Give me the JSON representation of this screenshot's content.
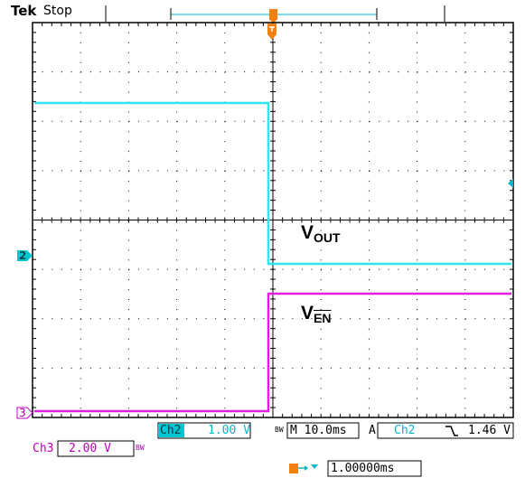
{
  "header": {
    "brand": "Tek",
    "status": "Stop"
  },
  "markers": {
    "trigger": "T",
    "ch2": "2",
    "ch3": "3"
  },
  "traces": {
    "vout_label_main": "V",
    "vout_label_sub": "OUT",
    "ven_label_main": "V",
    "ven_label_sub": "EN"
  },
  "readout": {
    "ch2_name": "Ch2",
    "ch2_scale": "1.00 V",
    "bw_symbol": "BW",
    "timebase": "M 10.0ms",
    "acq_mode": "A",
    "trig_source": "Ch2",
    "trig_slope_symbol": "falling-edge",
    "trig_level": "1.46 V",
    "ch3_name": "Ch3",
    "ch3_scale": "2.00 V",
    "delay_icon": "trigger-delay-icon",
    "delay_value": "1.00000ms"
  },
  "colors": {
    "ch2": "#2ee6ee",
    "ch3": "#e020e0",
    "trigger": "#f08010",
    "graticule": "#000000"
  }
}
